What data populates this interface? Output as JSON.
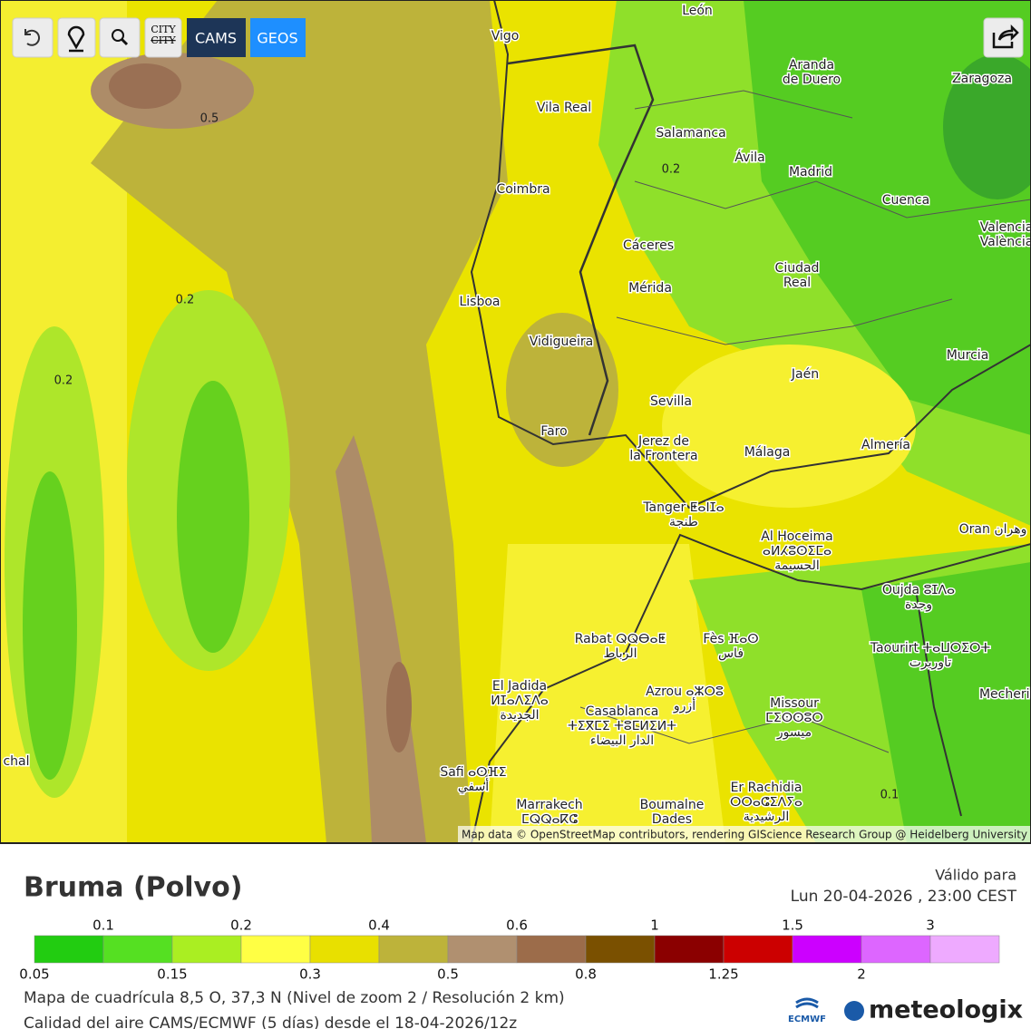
{
  "toolbar": {
    "city_button": [
      "CITY",
      "CITY"
    ],
    "buttons": [
      "CAMS",
      "GEOS"
    ]
  },
  "map": {
    "cities": [
      [
        "León"
      ],
      [
        "Vigo"
      ],
      [
        "Aranda",
        "de Duero"
      ],
      [
        "Zaragoza"
      ],
      [
        "Vila Real"
      ],
      [
        "Salamanca"
      ],
      [
        "Ávila"
      ],
      [
        "Madrid"
      ],
      [
        "Coimbra"
      ],
      [
        "Cuenca"
      ],
      [
        "Valencia",
        "València"
      ],
      [
        "Cáceres"
      ],
      [
        "Ciudad",
        "Real"
      ],
      [
        "Lisboa"
      ],
      [
        "Mérida"
      ],
      [
        "Murcia"
      ],
      [
        "Vidigueira"
      ],
      [
        "Jaén"
      ],
      [
        "Sevilla"
      ],
      [
        "Faro"
      ],
      [
        "Jerez de",
        "la Frontera"
      ],
      [
        "Málaga"
      ],
      [
        "Almería"
      ],
      [
        "Tanger ⵟⴰⵏⵊⴰ",
        "طنجة"
      ],
      [
        "Oran وهران"
      ],
      [
        "Al Hoceima",
        "ⴰⵍⵃⵓⵙⵉⵎⴰ",
        "الحسيمة"
      ],
      [
        "Oujda ⵓⵊⴷⴰ",
        "وجدة"
      ],
      [
        "Rabat ⵕⵕⴱⴰⵟ",
        "الرباط"
      ],
      [
        "Fès ⴼⴰⵙ",
        "فاس"
      ],
      [
        "Taourirt ⵜⴰⵡⵔⵉⵔⵜ",
        "تاوريرت"
      ],
      [
        "El Jadida",
        "ⵍⵊⴰⴷⵉⴷⴰ",
        "الجديدة"
      ],
      [
        "Azrou ⴰⵣⵔⵓ",
        "أزرو"
      ],
      [
        "Mecheria"
      ],
      [
        "Casablanca",
        "ⵜⵉⴳⵎⵉ ⵜⵓⵎⵍⵉⵍⵜ",
        "الدار البيضاء"
      ],
      [
        "Missour",
        "ⵎⵉⵙⵙⵓⵔ",
        "ميسور"
      ],
      [
        "Safi ⴰⵙⴼⵉ",
        "أسفي"
      ],
      [
        "Marrakech",
        "ⵎⵕⵕⴰⴽⵛ"
      ],
      [
        "Boumalne",
        "Dades"
      ],
      [
        "Er Rachidia",
        "ⵔⵔⴰⵛⵉⴷⵢⴰ",
        "الرشيدية"
      ],
      [
        "chal"
      ]
    ],
    "contour_labels": [
      "0.5",
      "0.2",
      "0.2",
      "0.2",
      "0.1"
    ],
    "attribution": "Map data © OpenStreetMap contributors, rendering GIScience Research Group @ Heidelberg University"
  },
  "legend": {
    "title": "Bruma (Polvo)",
    "valid_label": "Válido para",
    "valid_date": "Lun 20-04-2026 , 23:00 CEST",
    "colors": [
      "#22cc11",
      "#55e022",
      "#aaee22",
      "#ffff44",
      "#e8e000",
      "#bdb33a",
      "#b09070",
      "#9c6c4a",
      "#7a5000",
      "#8b0000",
      "#cc0000",
      "#cc00ff",
      "#dd66ff",
      "#eeaaff"
    ],
    "upper_labels": [
      "0.1",
      "0.2",
      "0.4",
      "0.6",
      "1",
      "1.5",
      "3"
    ],
    "lower_labels": [
      "0.05",
      "0.15",
      "0.3",
      "0.5",
      "0.8",
      "1.25",
      "2"
    ]
  },
  "footer": {
    "line1": "Mapa de cuadrícula 8,5 O, 37,3 N (Nivel de zoom 2 / Resolución 2 km)",
    "line2": "Calidad del aire CAMS/ECMWF (5 días) desde el 18-04-2026/12z"
  },
  "logos": {
    "ecmwf": "ECMWF",
    "brand": "meteologix"
  }
}
